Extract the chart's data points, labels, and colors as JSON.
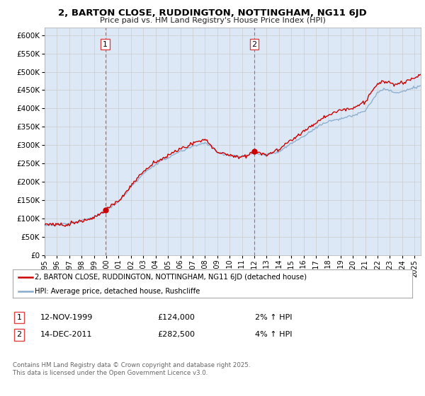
{
  "title": "2, BARTON CLOSE, RUDDINGTON, NOTTINGHAM, NG11 6JD",
  "subtitle": "Price paid vs. HM Land Registry's House Price Index (HPI)",
  "bg_color": "#ffffff",
  "plot_bg_color": "#dce8f5",
  "legend_label_red": "2, BARTON CLOSE, RUDDINGTON, NOTTINGHAM, NG11 6JD (detached house)",
  "legend_label_blue": "HPI: Average price, detached house, Rushcliffe",
  "purchase1_date": "12-NOV-1999",
  "purchase1_price": 124000,
  "purchase2_date": "14-DEC-2011",
  "purchase2_price": 282500,
  "purchase1_hpi": "2% ↑ HPI",
  "purchase2_hpi": "4% ↑ HPI",
  "footer": "Contains HM Land Registry data © Crown copyright and database right 2025.\nThis data is licensed under the Open Government Licence v3.0.",
  "ylim": [
    0,
    620000
  ],
  "yticks": [
    0,
    50000,
    100000,
    150000,
    200000,
    250000,
    300000,
    350000,
    400000,
    450000,
    500000,
    550000,
    600000
  ],
  "red_color": "#cc0000",
  "blue_color": "#88aacc",
  "dashed_color": "#dd4444",
  "year_start": 1995,
  "year_end": 2025
}
